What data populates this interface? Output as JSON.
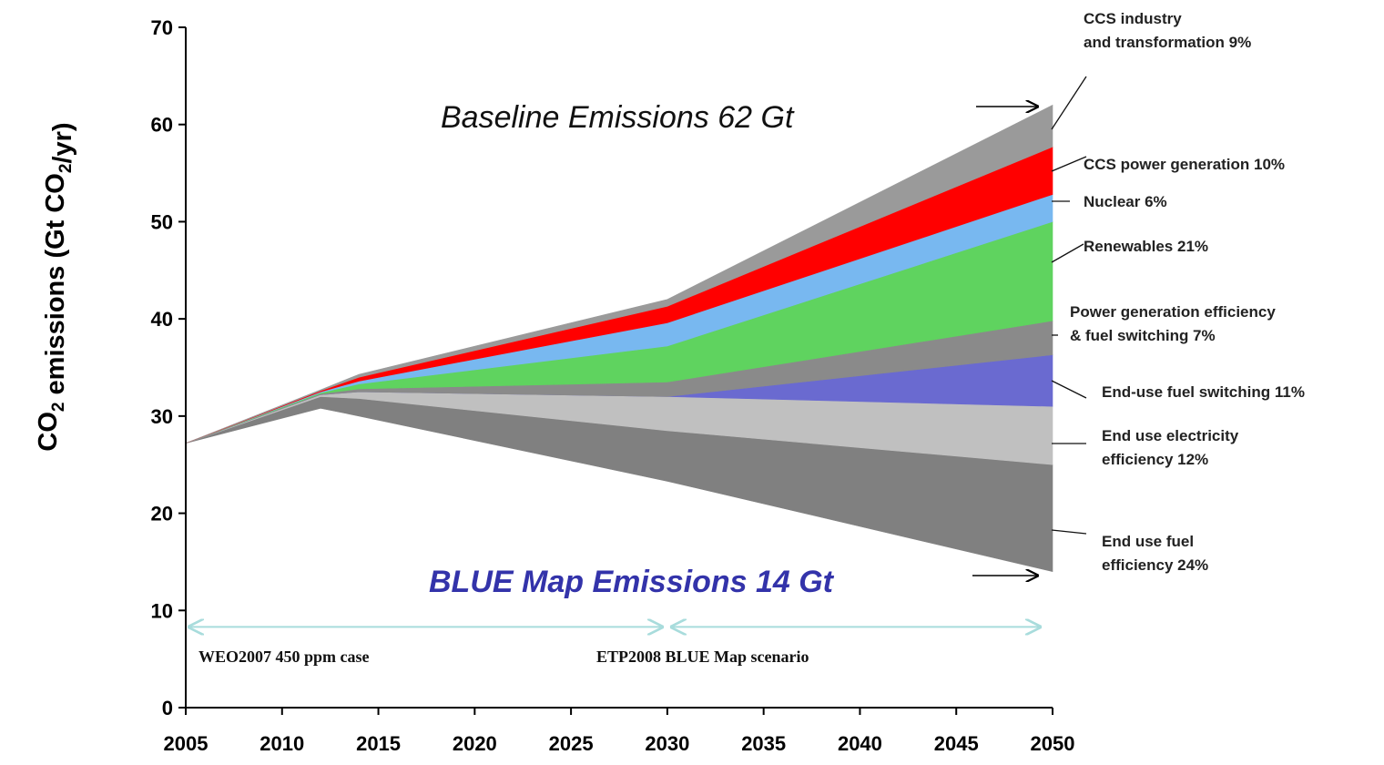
{
  "chart_data": {
    "type": "area",
    "title": "",
    "xlabel": "",
    "ylabel": "CO2 emissions (Gt CO2/yr)",
    "xlim": [
      2005,
      2050
    ],
    "ylim": [
      0,
      70
    ],
    "xticks": [
      "2005",
      "2010",
      "2015",
      "2020",
      "2025",
      "2030",
      "2035",
      "2040",
      "2045",
      "2050"
    ],
    "yticks": [
      "0",
      "10",
      "20",
      "30",
      "40",
      "50",
      "60",
      "70"
    ],
    "grid": false,
    "x": [
      2005,
      2012,
      2014,
      2030,
      2050
    ],
    "bands": [
      {
        "name": "End use fuel efficiency 24%",
        "color": "#808080",
        "lower": [
          27.2,
          30.8,
          30.0,
          23.3,
          14.0
        ],
        "upper": [
          27.2,
          32.0,
          31.8,
          28.5,
          25.0
        ]
      },
      {
        "name": "End use electricity efficiency 12%",
        "color": "#c0c0c0",
        "lower": [
          27.2,
          32.0,
          31.8,
          28.5,
          25.0
        ],
        "upper": [
          27.2,
          32.2,
          32.5,
          32.0,
          31.0
        ]
      },
      {
        "name": "End-use fuel switching 11%",
        "color": "#6a6ad0",
        "lower": [
          27.2,
          32.2,
          32.5,
          32.0,
          31.0
        ],
        "upper": [
          27.2,
          32.2,
          32.5,
          32.0,
          36.3
        ]
      },
      {
        "name": "Power generation efficiency & fuel switching 7%",
        "color": "#8a8a8a",
        "lower": [
          27.2,
          32.2,
          32.5,
          32.0,
          36.3
        ],
        "upper": [
          27.2,
          32.3,
          32.8,
          33.5,
          39.8
        ]
      },
      {
        "name": "Renewables 21%",
        "color": "#5fd35f",
        "lower": [
          27.2,
          32.3,
          32.8,
          33.5,
          39.8
        ],
        "upper": [
          27.2,
          32.4,
          33.3,
          37.2,
          50.0
        ]
      },
      {
        "name": "Nuclear 6%",
        "color": "#78b8f0",
        "lower": [
          27.2,
          32.4,
          33.3,
          37.2,
          50.0
        ],
        "upper": [
          27.2,
          32.5,
          33.6,
          39.6,
          52.8
        ]
      },
      {
        "name": "CCS power generation 10%",
        "color": "#ff0000",
        "lower": [
          27.2,
          32.5,
          33.6,
          39.6,
          52.8
        ],
        "upper": [
          27.2,
          32.6,
          34.0,
          41.3,
          57.7
        ]
      },
      {
        "name": "CCS industry and transformation 9%",
        "color": "#9a9a9a",
        "lower": [
          27.2,
          32.6,
          34.0,
          41.3,
          57.7
        ],
        "upper": [
          27.2,
          32.7,
          34.3,
          42.0,
          62.0
        ]
      }
    ],
    "segment_labels": [
      {
        "lines": [
          "CCS industry",
          "and transformation 9%"
        ],
        "color": "#222222"
      },
      {
        "lines": [
          "CCS power generation 10%"
        ],
        "color": "#222222"
      },
      {
        "lines": [
          "Nuclear 6%"
        ],
        "color": "#222222"
      },
      {
        "lines": [
          "Renewables 21%"
        ],
        "color": "#5050c0"
      },
      {
        "lines": [
          "Power generation efficiency",
          "& fuel switching 7%"
        ],
        "color": "#222222"
      },
      {
        "lines": [
          "End-use fuel switching 11%"
        ],
        "color": "#222222"
      },
      {
        "lines": [
          "End use electricity",
          "efficiency 12%"
        ],
        "color": "#222222"
      },
      {
        "lines": [
          "End use fuel",
          "efficiency 24%"
        ],
        "color": "#222222"
      }
    ],
    "annotations": {
      "baseline": {
        "text": "Baseline Emissions 62 Gt",
        "color": "#111111"
      },
      "bluemap": {
        "text": "BLUE Map Emissions 14 Gt",
        "color": "#3333aa"
      }
    },
    "phases": [
      {
        "label": "WEO2007 450 ppm case",
        "from": 2005,
        "to": 2030
      },
      {
        "label": "ETP2008 BLUE Map scenario",
        "from": 2030,
        "to": 2050
      }
    ],
    "phase_arrow_color": "#a8dcdc"
  }
}
